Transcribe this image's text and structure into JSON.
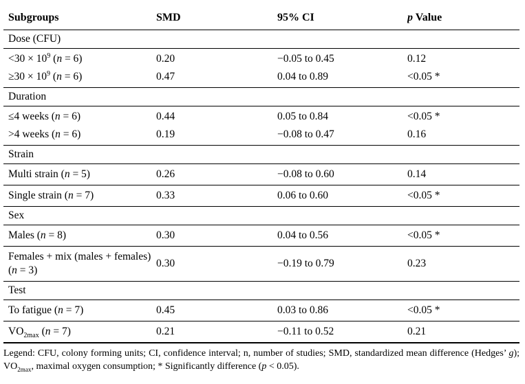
{
  "colors": {
    "text": "#000000",
    "background": "#ffffff",
    "rule": "#000000"
  },
  "table": {
    "headers": [
      {
        "id": "subgroups",
        "segs": [
          {
            "t": "Subgroups"
          }
        ]
      },
      {
        "id": "smd",
        "segs": [
          {
            "t": "SMD"
          }
        ]
      },
      {
        "id": "ci",
        "segs": [
          {
            "t": "95% CI"
          }
        ]
      },
      {
        "id": "p-value",
        "segs": [
          {
            "t": "p",
            "s": "i"
          },
          {
            "t": " Value"
          }
        ]
      }
    ],
    "sections": [
      {
        "title": "Dose (CFU)",
        "groups": [
          {
            "rows": [
              {
                "label": [
                  {
                    "t": "<30 × 10"
                  },
                  {
                    "t": "9",
                    "s": "sup"
                  },
                  {
                    "t": " ("
                  },
                  {
                    "t": "n",
                    "s": "i"
                  },
                  {
                    "t": " = 6)"
                  }
                ],
                "smd": "0.20",
                "ci": "−0.05 to 0.45",
                "p": "0.12"
              },
              {
                "label": [
                  {
                    "t": "≥30 × 10"
                  },
                  {
                    "t": "9",
                    "s": "sup"
                  },
                  {
                    "t": " ("
                  },
                  {
                    "t": "n",
                    "s": "i"
                  },
                  {
                    "t": " = 6)"
                  }
                ],
                "smd": "0.47",
                "ci": "0.04 to 0.89",
                "p": "<0.05 *"
              }
            ]
          }
        ]
      },
      {
        "title": "Duration",
        "groups": [
          {
            "rows": [
              {
                "label": [
                  {
                    "t": "≤4 weeks ("
                  },
                  {
                    "t": "n",
                    "s": "i"
                  },
                  {
                    "t": " = 6)"
                  }
                ],
                "smd": "0.44",
                "ci": "0.05 to 0.84",
                "p": "<0.05 *"
              },
              {
                "label": [
                  {
                    "t": ">4 weeks ("
                  },
                  {
                    "t": "n",
                    "s": "i"
                  },
                  {
                    "t": " = 6)"
                  }
                ],
                "smd": "0.19",
                "ci": "−0.08 to 0.47",
                "p": "0.16"
              }
            ]
          }
        ]
      },
      {
        "title": "Strain",
        "groups": [
          {
            "rows": [
              {
                "label": [
                  {
                    "t": "Multi strain ("
                  },
                  {
                    "t": "n",
                    "s": "i"
                  },
                  {
                    "t": " = 5)"
                  }
                ],
                "smd": "0.26",
                "ci": "−0.08 to 0.60",
                "p": "0.14"
              }
            ]
          },
          {
            "rows": [
              {
                "label": [
                  {
                    "t": "Single strain ("
                  },
                  {
                    "t": "n",
                    "s": "i"
                  },
                  {
                    "t": " = 7)"
                  }
                ],
                "smd": "0.33",
                "ci": "0.06 to 0.60",
                "p": "<0.05 *"
              }
            ]
          }
        ]
      },
      {
        "title": "Sex",
        "groups": [
          {
            "rows": [
              {
                "label": [
                  {
                    "t": "Males ("
                  },
                  {
                    "t": "n",
                    "s": "i"
                  },
                  {
                    "t": " = 8)"
                  }
                ],
                "smd": "0.30",
                "ci": "0.04 to 0.56",
                "p": "<0.05 *"
              }
            ]
          },
          {
            "rows": [
              {
                "label": [
                  {
                    "t": "Females + mix (males + females) ("
                  },
                  {
                    "t": "n",
                    "s": "i"
                  },
                  {
                    "t": " = 3)"
                  }
                ],
                "smd": "0.30",
                "ci": "−0.19 to 0.79",
                "p": "0.23"
              }
            ]
          }
        ]
      },
      {
        "title": "Test",
        "groups": [
          {
            "rows": [
              {
                "label": [
                  {
                    "t": "To fatigue ("
                  },
                  {
                    "t": "n",
                    "s": "i"
                  },
                  {
                    "t": " = 7)"
                  }
                ],
                "smd": "0.45",
                "ci": "0.03 to 0.86",
                "p": "<0.05 *"
              }
            ]
          },
          {
            "rows": [
              {
                "label": [
                  {
                    "t": "VO"
                  },
                  {
                    "t": "2max",
                    "s": "sub"
                  },
                  {
                    "t": " ("
                  },
                  {
                    "t": "n",
                    "s": "i"
                  },
                  {
                    "t": " = 7)"
                  }
                ],
                "smd": "0.21",
                "ci": "−0.11 to 0.52",
                "p": "0.21",
                "final": true
              }
            ]
          }
        ]
      }
    ]
  },
  "legend": {
    "segs": [
      {
        "t": "Legend: CFU, colony forming units; CI, confidence interval; n, number of studies; SMD, standardized mean difference (Hedges’ "
      },
      {
        "t": "g",
        "s": "i"
      },
      {
        "t": "); VO"
      },
      {
        "t": "2max",
        "s": "sub"
      },
      {
        "t": ", maximal oxygen consumption; * Significantly difference ("
      },
      {
        "t": "p",
        "s": "i"
      },
      {
        "t": " < 0.05)."
      }
    ]
  }
}
